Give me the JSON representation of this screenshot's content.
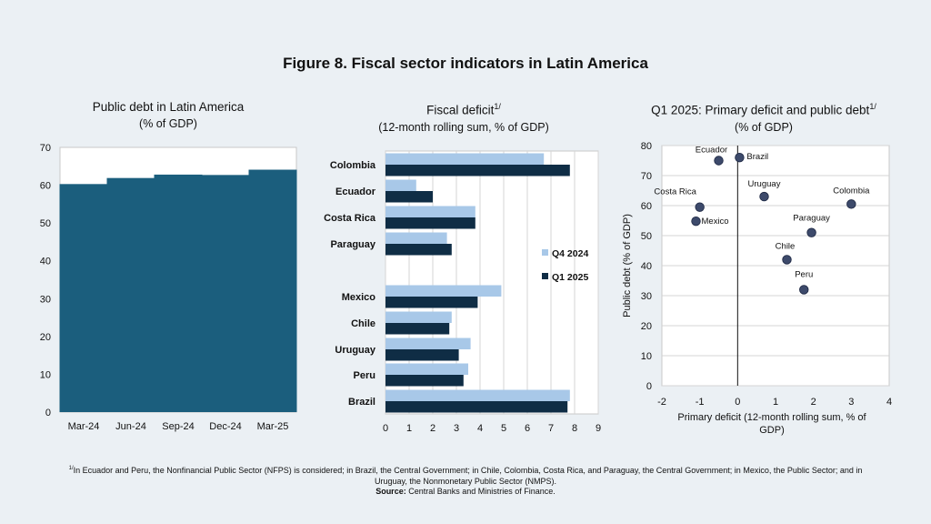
{
  "figure_title": "Figure 8. Fiscal sector indicators in Latin America",
  "colors": {
    "background": "#ebf0f4",
    "debt_bar": "#1b5e7d",
    "q4_2024": "#a8c8e8",
    "q1_2025": "#0f2d45",
    "scatter_point": "#3d4a6b"
  },
  "footnote": {
    "marker": "1/",
    "text": "In Ecuador and Peru, the Nonfinancial Public Sector (NFPS) is considered; in Brazil, the Central Government; in Chile, Colombia, Costa Rica, and Paraguay, the Central Government; in Mexico, the Public Sector; and in Uruguay, the Nonmonetary Public Sector (NMPS).",
    "source_label": "Source:",
    "source_text": "Central Banks and Ministries of Finance."
  },
  "chart_data": [
    {
      "type": "bar",
      "title": "Public debt in Latin America",
      "subtitle": "(% of GDP)",
      "categories": [
        "Mar-24",
        "Jun-24",
        "Sep-24",
        "Dec-24",
        "Mar-25"
      ],
      "values": [
        60.3,
        61.9,
        62.8,
        62.7,
        64.1
      ],
      "ylim": [
        0,
        70
      ],
      "yticks": [
        0,
        10,
        20,
        30,
        40,
        50,
        60,
        70
      ],
      "grid": false
    },
    {
      "type": "bar",
      "orientation": "horizontal",
      "title": "Fiscal deficit",
      "title_superscript": "1/",
      "subtitle": "(12-month rolling sum, % of GDP)",
      "categories": [
        "Colombia",
        "Ecuador",
        "Costa Rica",
        "Paraguay",
        "Mexico",
        "Chile",
        "Uruguay",
        "Peru",
        "Brazil"
      ],
      "series": [
        {
          "name": "Q4 2024",
          "values": [
            6.7,
            1.3,
            3.8,
            2.6,
            4.9,
            2.8,
            3.6,
            3.5,
            7.8
          ]
        },
        {
          "name": "Q1 2025",
          "values": [
            7.8,
            2.0,
            3.8,
            2.8,
            3.9,
            2.7,
            3.1,
            3.3,
            7.7
          ]
        }
      ],
      "xlim": [
        0,
        9
      ],
      "xticks": [
        0,
        1,
        2,
        3,
        4,
        5,
        6,
        7,
        8,
        9
      ],
      "grid": true,
      "legend": "right"
    },
    {
      "type": "scatter",
      "title": "Q1 2025: Primary deficit and public debt",
      "title_superscript": "1/",
      "subtitle": "(% of GDP)",
      "xlabel": "Primary deficit (12-month rolling sum, % of GDP)",
      "ylabel": "Public debt  (% of GDP)",
      "xlim": [
        -2,
        4
      ],
      "ylim": [
        0,
        80
      ],
      "xticks": [
        -2,
        -1,
        0,
        1,
        2,
        3,
        4
      ],
      "yticks": [
        0,
        10,
        20,
        30,
        40,
        50,
        60,
        70,
        80
      ],
      "grid": true,
      "points": [
        {
          "label": "Ecuador",
          "x": -0.5,
          "y": 75
        },
        {
          "label": "Brazil",
          "x": 0.05,
          "y": 76
        },
        {
          "label": "Costa Rica",
          "x": -1.0,
          "y": 59.5
        },
        {
          "label": "Mexico",
          "x": -1.1,
          "y": 54.8
        },
        {
          "label": "Uruguay",
          "x": 0.7,
          "y": 63
        },
        {
          "label": "Colombia",
          "x": 3.0,
          "y": 60.5
        },
        {
          "label": "Paraguay",
          "x": 1.95,
          "y": 51
        },
        {
          "label": "Chile",
          "x": 1.3,
          "y": 42
        },
        {
          "label": "Peru",
          "x": 1.75,
          "y": 32
        }
      ]
    }
  ]
}
